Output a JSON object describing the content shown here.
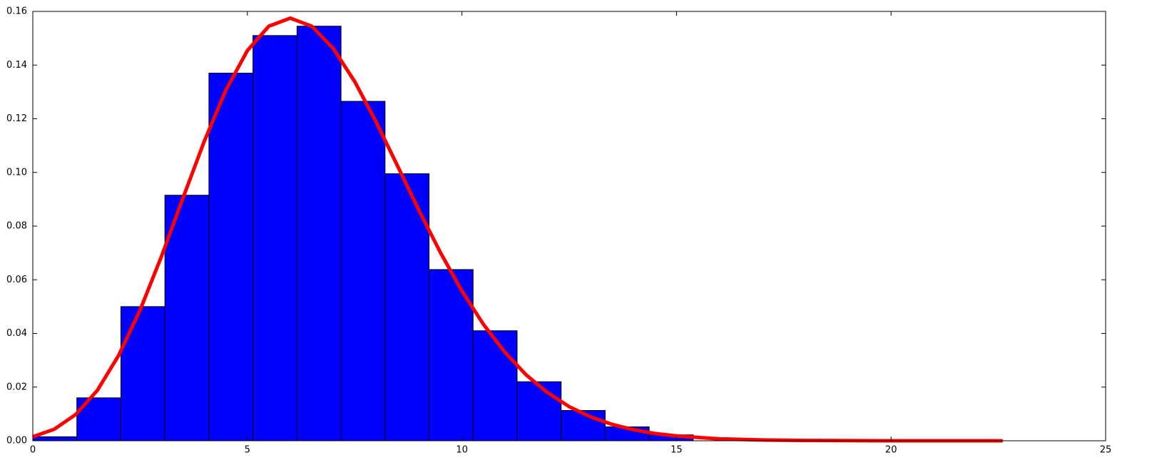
{
  "chart_data": {
    "type": "histogram",
    "bins": [
      0,
      1.026,
      2.052,
      3.078,
      4.104,
      5.13,
      6.156,
      7.182,
      8.208,
      9.234,
      10.26,
      11.286,
      12.312,
      13.338,
      14.364,
      15.39
    ],
    "values": [
      0.0015,
      0.016,
      0.05,
      0.0915,
      0.137,
      0.151,
      0.1545,
      0.1265,
      0.0995,
      0.0638,
      0.041,
      0.022,
      0.0113,
      0.0052,
      0.0022
    ],
    "color": "#0000ff",
    "curve": {
      "type": "line",
      "color": "#ff0000",
      "x": [
        0,
        0.5,
        1,
        1.5,
        2,
        2.5,
        3,
        3.5,
        4,
        4.5,
        5,
        5.5,
        6,
        6.5,
        7,
        7.5,
        8,
        8.5,
        9,
        9.5,
        10,
        10.5,
        11,
        11.5,
        12,
        12.5,
        13,
        13.5,
        14,
        14.5,
        15,
        16,
        17,
        18,
        20,
        22.6
      ],
      "values": [
        0.0015,
        0.0043,
        0.0098,
        0.0187,
        0.0318,
        0.0487,
        0.0688,
        0.0905,
        0.1118,
        0.1307,
        0.1454,
        0.1545,
        0.1575,
        0.1545,
        0.1462,
        0.1339,
        0.1188,
        0.1024,
        0.0858,
        0.0701,
        0.0558,
        0.0434,
        0.033,
        0.0245,
        0.0179,
        0.0127,
        0.0089,
        0.0061,
        0.0041,
        0.0027,
        0.0018,
        0.0007,
        0.0003,
        0.0001,
        0,
        0
      ]
    },
    "xlim": [
      0,
      25
    ],
    "ylim": [
      0,
      0.16
    ],
    "xticks": [
      0,
      5,
      10,
      15,
      20,
      25
    ],
    "yticks": [
      {
        "value": 0,
        "label": "0.00"
      },
      0.02,
      0.04,
      0.06,
      0.08,
      {
        "value": 0.1,
        "label": "0.10"
      },
      0.12,
      0.14,
      0.16
    ]
  }
}
